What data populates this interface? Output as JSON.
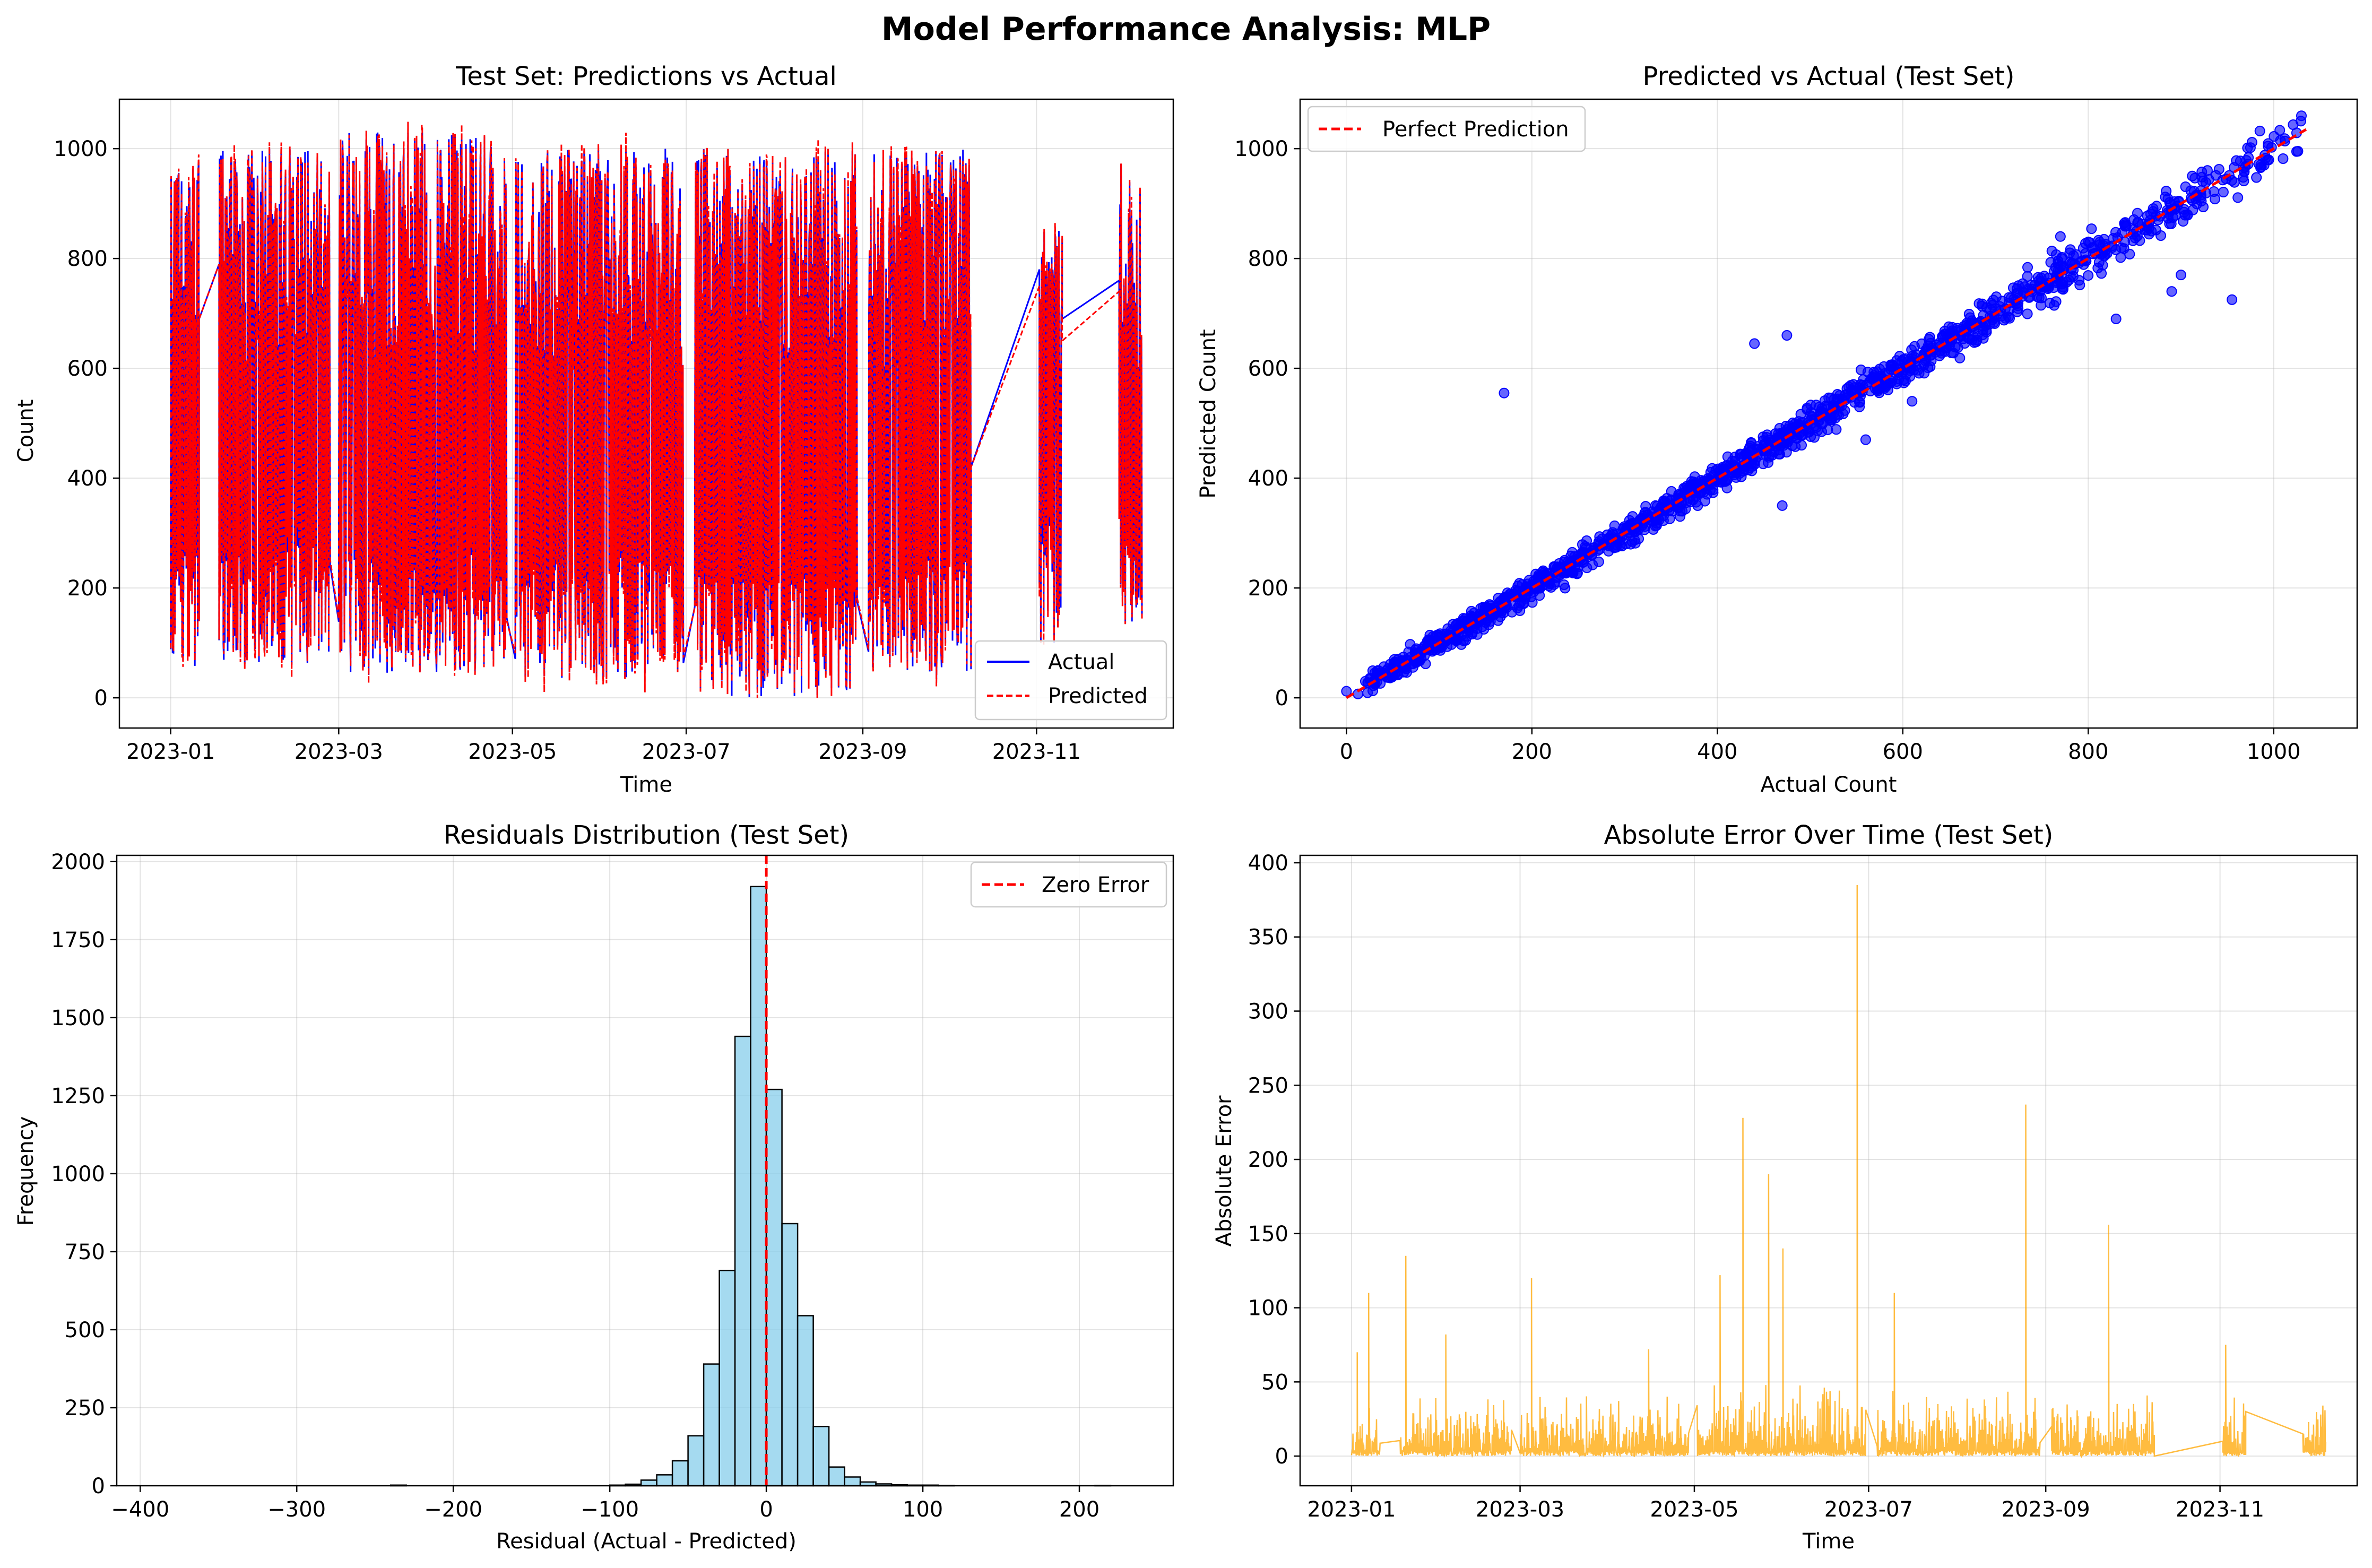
{
  "figure": {
    "title": "Model Performance Analysis: MLP"
  },
  "chart_data": [
    {
      "type": "line",
      "title": "Test Set: Predictions vs Actual",
      "xlabel": "Time",
      "ylabel": "Count",
      "x_range": [
        "2022-12-14",
        "2023-12-19"
      ],
      "x_ticks": [
        "2023-01",
        "2023-03",
        "2023-05",
        "2023-07",
        "2023-09",
        "2023-11"
      ],
      "ylim": [
        -55,
        1090
      ],
      "y_ticks": [
        0,
        200,
        400,
        600,
        800,
        1000
      ],
      "grid": true,
      "legend": {
        "placement": "bottom-right"
      },
      "series": [
        {
          "name": "Actual",
          "color": "#0000ff",
          "style": "solid"
        },
        {
          "name": "Predicted",
          "color": "#ff0000",
          "style": "dashed"
        }
      ],
      "segments": [
        {
          "start": "2023-01-01",
          "end": "2023-01-11",
          "min": 45,
          "max": 990
        },
        {
          "start": "2023-01-18",
          "end": "2023-02-26",
          "min": 60,
          "max": 1000
        },
        {
          "start": "2023-03-01",
          "end": "2023-04-29",
          "min": 40,
          "max": 1030
        },
        {
          "start": "2023-05-02",
          "end": "2023-06-30",
          "min": 35,
          "max": 1000
        },
        {
          "start": "2023-07-04",
          "end": "2023-08-30",
          "min": 0,
          "max": 1000
        },
        {
          "start": "2023-09-03",
          "end": "2023-10-09",
          "min": 30,
          "max": 1000
        },
        {
          "start": "2023-11-02",
          "end": "2023-11-10",
          "min": 100,
          "max": 870
        },
        {
          "start": "2023-11-30",
          "end": "2023-12-08",
          "min": 130,
          "max": 980
        }
      ],
      "bridges": [
        {
          "from": "2023-01-11",
          "to": "2023-01-18",
          "actual": [
            690,
            790
          ],
          "predicted": [
            690,
            790
          ]
        },
        {
          "from": "2023-10-09",
          "to": "2023-11-02",
          "actual": [
            420,
            780
          ],
          "predicted": [
            420,
            750
          ]
        },
        {
          "from": "2023-11-10",
          "to": "2023-11-30",
          "actual": [
            690,
            760
          ],
          "predicted": [
            650,
            740
          ]
        }
      ]
    },
    {
      "type": "scatter",
      "title": "Predicted vs Actual (Test Set)",
      "xlabel": "Actual Count",
      "ylabel": "Predicted Count",
      "xlim": [
        -50,
        1090
      ],
      "ylim": [
        -55,
        1090
      ],
      "x_ticks": [
        0,
        200,
        400,
        600,
        800,
        1000
      ],
      "y_ticks": [
        0,
        200,
        400,
        600,
        800,
        1000
      ],
      "grid": true,
      "legend": {
        "placement": "top-left"
      },
      "point_color": "#0000ff",
      "points_band": {
        "x_min": 0,
        "x_max": 1030,
        "typical_spread": 22
      },
      "outliers": [
        [
          170,
          555
        ],
        [
          440,
          645
        ],
        [
          475,
          660
        ],
        [
          955,
          725
        ],
        [
          890,
          740
        ],
        [
          830,
          690
        ],
        [
          900,
          770
        ],
        [
          770,
          840
        ],
        [
          560,
          470
        ],
        [
          470,
          350
        ],
        [
          610,
          540
        ]
      ],
      "reference_line": {
        "name": "Perfect Prediction",
        "from": [
          0,
          0
        ],
        "to": [
          1035,
          1035
        ],
        "color": "#ff0000"
      }
    },
    {
      "type": "bar",
      "title": "Residuals Distribution (Test Set)",
      "xlabel": "Residual (Actual - Predicted)",
      "ylabel": "Frequency",
      "xlim": [
        -415,
        260
      ],
      "ylim": [
        0,
        2020
      ],
      "x_ticks": [
        -400,
        -300,
        -200,
        -100,
        0,
        100,
        200
      ],
      "y_ticks": [
        0,
        250,
        500,
        750,
        1000,
        1250,
        1500,
        1750,
        2000
      ],
      "grid": true,
      "legend": {
        "placement": "top-right"
      },
      "bin_width": 10,
      "bins": [
        {
          "left": -240,
          "count": 2
        },
        {
          "left": -100,
          "count": 2
        },
        {
          "left": -90,
          "count": 5
        },
        {
          "left": -80,
          "count": 18
        },
        {
          "left": -70,
          "count": 35
        },
        {
          "left": -60,
          "count": 80
        },
        {
          "left": -50,
          "count": 160
        },
        {
          "left": -40,
          "count": 390
        },
        {
          "left": -30,
          "count": 690
        },
        {
          "left": -20,
          "count": 1440
        },
        {
          "left": -10,
          "count": 1920
        },
        {
          "left": 0,
          "count": 1270
        },
        {
          "left": 10,
          "count": 840
        },
        {
          "left": 20,
          "count": 545
        },
        {
          "left": 30,
          "count": 190
        },
        {
          "left": 40,
          "count": 60
        },
        {
          "left": 50,
          "count": 28
        },
        {
          "left": 60,
          "count": 12
        },
        {
          "left": 70,
          "count": 6
        },
        {
          "left": 80,
          "count": 3
        },
        {
          "left": 90,
          "count": 2
        },
        {
          "left": 100,
          "count": 2
        },
        {
          "left": 110,
          "count": 1
        },
        {
          "left": 210,
          "count": 1
        }
      ],
      "bar_color": "#87ceeb",
      "reference_line": {
        "name": "Zero Error",
        "x": 0,
        "color": "#ff0000"
      }
    },
    {
      "type": "line",
      "title": "Absolute Error Over Time (Test Set)",
      "xlabel": "Time",
      "ylabel": "Absolute Error",
      "x_range": [
        "2022-12-14",
        "2023-12-19"
      ],
      "x_ticks": [
        "2023-01",
        "2023-03",
        "2023-05",
        "2023-07",
        "2023-09",
        "2023-11"
      ],
      "ylim": [
        -20,
        405
      ],
      "y_ticks": [
        0,
        50,
        100,
        150,
        200,
        250,
        300,
        350,
        400
      ],
      "grid": true,
      "line_color": "#ffa500",
      "segments": [
        {
          "start": "2023-01-01",
          "end": "2023-01-11",
          "typical": 35
        },
        {
          "start": "2023-01-18",
          "end": "2023-02-26",
          "typical": 40
        },
        {
          "start": "2023-03-01",
          "end": "2023-04-29",
          "typical": 42
        },
        {
          "start": "2023-05-02",
          "end": "2023-06-30",
          "typical": 48
        },
        {
          "start": "2023-07-04",
          "end": "2023-08-30",
          "typical": 45
        },
        {
          "start": "2023-09-03",
          "end": "2023-10-09",
          "typical": 42
        },
        {
          "start": "2023-11-02",
          "end": "2023-11-10",
          "typical": 45
        },
        {
          "start": "2023-11-30",
          "end": "2023-12-08",
          "typical": 45
        }
      ],
      "spikes": [
        {
          "date": "2023-01-03",
          "value": 70
        },
        {
          "date": "2023-01-07",
          "value": 110
        },
        {
          "date": "2023-01-13",
          "value": 60
        },
        {
          "date": "2023-01-20",
          "value": 135
        },
        {
          "date": "2023-02-03",
          "value": 82
        },
        {
          "date": "2023-03-05",
          "value": 120
        },
        {
          "date": "2023-04-15",
          "value": 72
        },
        {
          "date": "2023-05-10",
          "value": 122
        },
        {
          "date": "2023-05-18",
          "value": 228
        },
        {
          "date": "2023-05-27",
          "value": 190
        },
        {
          "date": "2023-06-01",
          "value": 140
        },
        {
          "date": "2023-06-27",
          "value": 385
        },
        {
          "date": "2023-07-10",
          "value": 110
        },
        {
          "date": "2023-08-25",
          "value": 237
        },
        {
          "date": "2023-09-23",
          "value": 156
        },
        {
          "date": "2023-11-03",
          "value": 75
        }
      ],
      "bridges": [
        {
          "from": "2023-10-09",
          "to": "2023-11-02",
          "values": [
            0,
            10
          ]
        },
        {
          "from": "2023-11-10",
          "to": "2023-11-30",
          "values": [
            30,
            15
          ]
        }
      ]
    }
  ]
}
